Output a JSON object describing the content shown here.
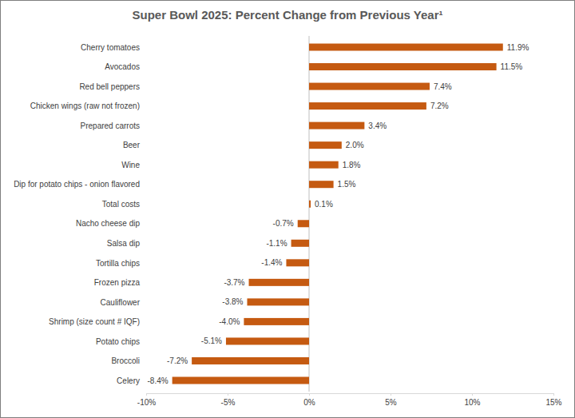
{
  "chart_data": {
    "type": "bar",
    "orientation": "horizontal",
    "title": "Super Bowl 2025: Percent Change from Previous Year¹",
    "categories": [
      "Cherry tomatoes",
      "Avocados",
      "Red bell peppers",
      "Chicken wings (raw not frozen)",
      "Prepared carrots",
      "Beer",
      "Wine",
      "Dip for potato chips - onion flavored",
      "Total costs",
      "Nacho cheese dip",
      "Salsa dip",
      "Tortilla chips",
      "Frozen pizza",
      "Cauliflower",
      "Shrimp (size count # IQF)",
      "Potato chips",
      "Broccoli",
      "Celery"
    ],
    "values": [
      11.9,
      11.5,
      7.4,
      7.2,
      3.4,
      2.0,
      1.8,
      1.5,
      0.1,
      -0.7,
      -1.1,
      -1.4,
      -3.7,
      -3.8,
      -4.0,
      -5.1,
      -7.2,
      -8.4
    ],
    "value_labels": [
      "11.9%",
      "11.5%",
      "7.4%",
      "7.2%",
      "3.4%",
      "2.0%",
      "1.8%",
      "1.5%",
      "0.1%",
      "-0.7%",
      "-1.1%",
      "-1.4%",
      "-3.7%",
      "-3.8%",
      "-4.0%",
      "-5.1%",
      "-7.2%",
      "-8.4%"
    ],
    "color": "#c55a11",
    "xlim": [
      -10,
      15
    ],
    "xticks": [
      {
        "value": -10,
        "label": "-10%"
      },
      {
        "value": -5,
        "label": "-5%"
      },
      {
        "value": 0,
        "label": "0%"
      },
      {
        "value": 5,
        "label": "5%"
      },
      {
        "value": 10,
        "label": "10%"
      },
      {
        "value": 15,
        "label": "15%"
      }
    ],
    "grid": false,
    "data_labels": true
  }
}
